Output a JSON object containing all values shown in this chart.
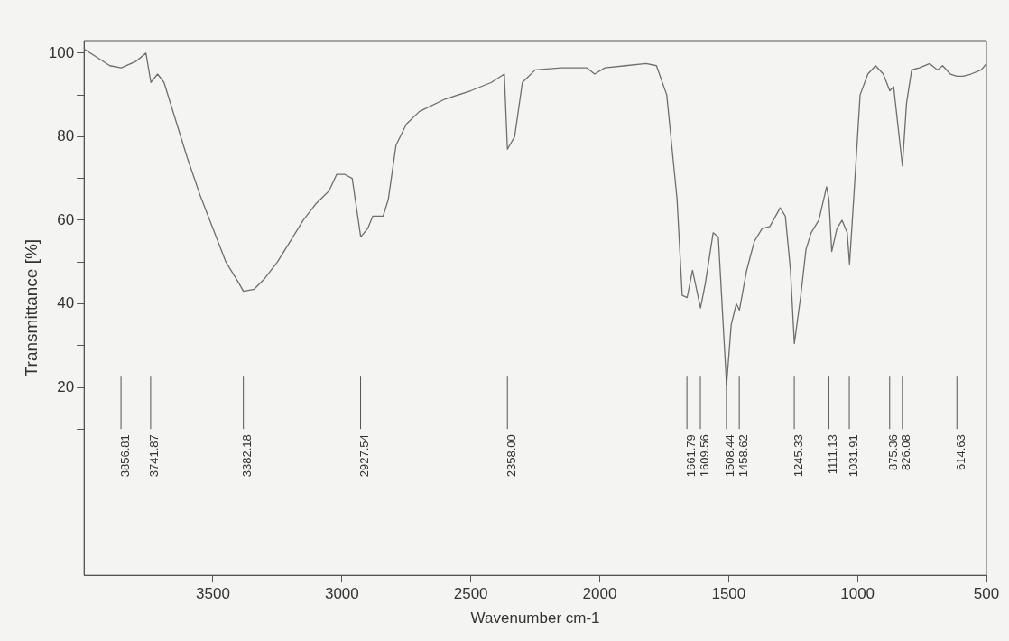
{
  "chart_data": {
    "type": "line",
    "xlabel": "Wavenumber cm-1",
    "ylabel": "Transmittance [%]",
    "color": "#6e6e6e",
    "x": [
      4000,
      3950,
      3900,
      3856,
      3800,
      3760,
      3741,
      3715,
      3690,
      3650,
      3600,
      3550,
      3500,
      3450,
      3400,
      3382,
      3340,
      3300,
      3250,
      3200,
      3150,
      3100,
      3050,
      3020,
      2990,
      2960,
      2927,
      2900,
      2880,
      2840,
      2820,
      2790,
      2750,
      2700,
      2600,
      2500,
      2420,
      2370,
      2358,
      2330,
      2300,
      2250,
      2150,
      2050,
      2020,
      1980,
      1900,
      1820,
      1780,
      1740,
      1700,
      1680,
      1661,
      1640,
      1609,
      1590,
      1560,
      1540,
      1508,
      1490,
      1470,
      1458,
      1430,
      1400,
      1370,
      1340,
      1300,
      1280,
      1260,
      1245,
      1220,
      1200,
      1180,
      1150,
      1120,
      1111,
      1100,
      1080,
      1060,
      1040,
      1031,
      1010,
      990,
      960,
      930,
      900,
      875,
      860,
      826,
      810,
      790,
      760,
      720,
      690,
      670,
      640,
      615,
      590,
      560,
      520,
      500
    ],
    "values": [
      101,
      99,
      97,
      96.5,
      98,
      100,
      93,
      95,
      93,
      85,
      75,
      66,
      58,
      50,
      45,
      43,
      43.5,
      46,
      50,
      55,
      60,
      64,
      67,
      71,
      71,
      70,
      56,
      58,
      61,
      61,
      65,
      78,
      83,
      86,
      89,
      91,
      93,
      95,
      77,
      80,
      93,
      96,
      96.5,
      96.5,
      95,
      96.5,
      97,
      97.5,
      97,
      90,
      65,
      42,
      41.5,
      48,
      39,
      45,
      57,
      56,
      20.5,
      35,
      40,
      38.5,
      48,
      55,
      58,
      58.5,
      63,
      61,
      48,
      30.5,
      42,
      53,
      57,
      60,
      68,
      65,
      52.5,
      58,
      60,
      57,
      49.5,
      70,
      90,
      95,
      97,
      95,
      91,
      92,
      73,
      88,
      96,
      96.5,
      97.5,
      96,
      97,
      95,
      94.5,
      94.5,
      95,
      96,
      97.5
    ],
    "xlim": [
      4000,
      500
    ],
    "xticks": [
      3500,
      3000,
      2500,
      2000,
      1500,
      1000,
      500
    ],
    "ylim": [
      -25,
      103
    ],
    "yticks": [
      {
        "value": 10,
        "label": null
      },
      20,
      {
        "value": 30,
        "label": null
      },
      40,
      {
        "value": 50,
        "label": null
      },
      60,
      {
        "value": 70,
        "label": null
      },
      80,
      {
        "value": 90,
        "label": null
      },
      100
    ],
    "grid": false,
    "legend": false,
    "marker": "none",
    "line_style": "solid",
    "ref_lines": [
      {
        "axis": "x",
        "value": 3856.81,
        "label": "3856.81",
        "color": "#555555"
      },
      {
        "axis": "x",
        "value": 3741.87,
        "label": "3741.87",
        "color": "#555555"
      },
      {
        "axis": "x",
        "value": 3382.18,
        "label": "3382.18",
        "color": "#555555"
      },
      {
        "axis": "x",
        "value": 2927.54,
        "label": "2927.54",
        "color": "#555555"
      },
      {
        "axis": "x",
        "value": 2358.0,
        "label": "2358.00",
        "color": "#555555"
      },
      {
        "axis": "x",
        "value": 1661.79,
        "label": "1661.79",
        "color": "#555555"
      },
      {
        "axis": "x",
        "value": 1609.56,
        "label": "1609.56",
        "color": "#555555"
      },
      {
        "axis": "x",
        "value": 1508.44,
        "label": "1508.44",
        "color": "#555555"
      },
      {
        "axis": "x",
        "value": 1458.62,
        "label": "1458.62",
        "color": "#555555"
      },
      {
        "axis": "x",
        "value": 1245.33,
        "label": "1245.33",
        "color": "#555555"
      },
      {
        "axis": "x",
        "value": 1111.13,
        "label": "1111.13",
        "color": "#555555"
      },
      {
        "axis": "x",
        "value": 1031.91,
        "label": "1031.91",
        "color": "#555555"
      },
      {
        "axis": "x",
        "value": 875.36,
        "label": "875.36",
        "color": "#555555"
      },
      {
        "axis": "x",
        "value": 826.08,
        "label": "826.08",
        "color": "#555555"
      },
      {
        "axis": "x",
        "value": 614.63,
        "label": "614.63",
        "color": "#555555"
      }
    ]
  }
}
